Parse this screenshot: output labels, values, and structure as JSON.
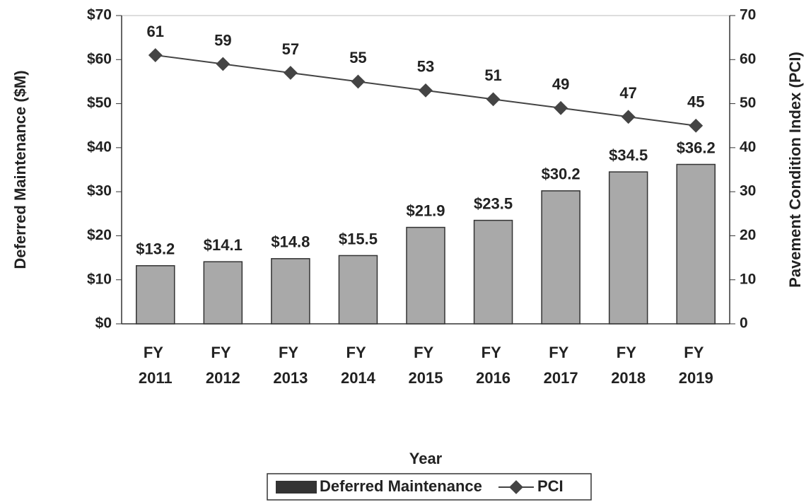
{
  "chart_data": {
    "type": "bar",
    "x_label": "Year",
    "y_label": "Deferred Maintenance ($M)",
    "y2_label": "Pavement Condition Index (PCI)",
    "categories": [
      "FY 2011",
      "FY 2012",
      "FY 2013",
      "FY 2014",
      "FY 2015",
      "FY 2016",
      "FY 2017",
      "FY 2018",
      "FY 2019"
    ],
    "series": [
      {
        "name": "Deferred Maintenance",
        "color": "#a9a9a9",
        "values": [
          13.2,
          14.1,
          14.8,
          15.5,
          21.9,
          23.5,
          30.2,
          34.5,
          36.2
        ],
        "value_labels": [
          "$13.2",
          "$14.1",
          "$14.8",
          "$15.5",
          "$21.9",
          "$23.5",
          "$30.2",
          "$34.5",
          "$36.2"
        ]
      },
      {
        "name": "PCI",
        "type": "line",
        "axis": "y2",
        "color": "#444444",
        "values": [
          61,
          59,
          57,
          55,
          53,
          51,
          49,
          47,
          45
        ]
      }
    ],
    "ylim": [
      0,
      70
    ],
    "yticks": [
      {
        "value": 0,
        "label": "$0"
      },
      {
        "value": 10,
        "label": "$10"
      },
      {
        "value": 20,
        "label": "$20"
      },
      {
        "value": 30,
        "label": "$30"
      },
      {
        "value": 40,
        "label": "$40"
      },
      {
        "value": 50,
        "label": "$50"
      },
      {
        "value": 60,
        "label": "$60"
      },
      {
        "value": 70,
        "label": "$70"
      }
    ],
    "y2lim": [
      0,
      70
    ],
    "y2ticks": [
      0,
      10,
      20,
      30,
      40,
      50,
      60,
      70
    ],
    "legend": "bottom"
  }
}
